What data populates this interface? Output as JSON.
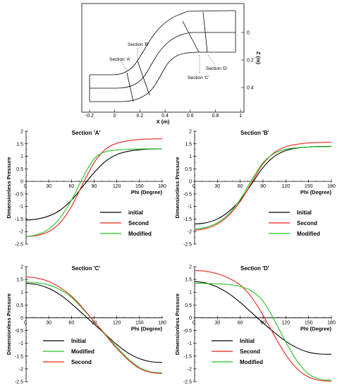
{
  "geometry": {
    "xlabel": "X (m)",
    "ylabel": "Z (m)",
    "x_ticks": [
      "-0.2",
      "0",
      "0.2",
      "0.4",
      "0.6",
      "0.8",
      "1"
    ],
    "y_ticks": [
      "0",
      "0.2",
      "0.4"
    ],
    "section_labels": [
      "Section 'A'",
      "Section 'B'",
      "Section 'C'",
      "Section 'D'"
    ]
  },
  "chart_data": [
    {
      "type": "line",
      "title": "Section 'A'",
      "xlabel": "Phi (Degree)",
      "ylabel": "Dimensionless Pressure",
      "xlim": [
        0,
        180
      ],
      "ylim": [
        -2.5,
        2
      ],
      "x_ticks": [
        "30",
        "60",
        "90",
        "120",
        "150",
        "180"
      ],
      "y_ticks": [
        "2",
        "1.5",
        "1",
        "0.5",
        "0",
        "-0.5",
        "-1",
        "-1.5",
        "-2",
        "-2.5"
      ],
      "legend_position": "lower-right",
      "series": [
        {
          "name": "initial",
          "color": "#000000",
          "x": [
            0,
            15,
            30,
            45,
            60,
            75,
            90,
            105,
            120,
            135,
            150,
            165,
            180
          ],
          "y": [
            -1.55,
            -1.5,
            -1.38,
            -1.15,
            -0.75,
            -0.2,
            0.35,
            0.8,
            1.07,
            1.2,
            1.26,
            1.29,
            1.3
          ]
        },
        {
          "name": "Second",
          "color": "#e8231a",
          "x": [
            0,
            15,
            30,
            45,
            60,
            75,
            90,
            105,
            120,
            135,
            150,
            165,
            180
          ],
          "y": [
            -2.2,
            -2.15,
            -2.0,
            -1.65,
            -1.0,
            -0.1,
            0.75,
            1.28,
            1.52,
            1.62,
            1.67,
            1.69,
            1.7
          ]
        },
        {
          "name": "Modified",
          "color": "#22c422",
          "x": [
            0,
            15,
            30,
            45,
            60,
            75,
            90,
            105,
            120,
            135,
            150,
            165,
            180
          ],
          "y": [
            -2.2,
            -2.12,
            -1.9,
            -1.45,
            -0.75,
            0.15,
            0.9,
            1.18,
            1.25,
            1.28,
            1.29,
            1.3,
            1.3
          ]
        }
      ]
    },
    {
      "type": "line",
      "title": "Section 'B'",
      "xlabel": "Phi (Degree)",
      "ylabel": "Dimensionless Pressure",
      "xlim": [
        0,
        180
      ],
      "ylim": [
        -2.5,
        2
      ],
      "x_ticks": [
        "30",
        "60",
        "90",
        "120",
        "150",
        "180"
      ],
      "y_ticks": [
        "2",
        "1.5",
        "1",
        "0.5",
        "0",
        "-0.5",
        "-1",
        "-1.5",
        "-2",
        "-2.5"
      ],
      "legend_position": "lower-right",
      "series": [
        {
          "name": "Initial",
          "color": "#000000",
          "x": [
            0,
            15,
            30,
            45,
            60,
            75,
            90,
            105,
            120,
            135,
            150,
            165,
            180
          ],
          "y": [
            -1.7,
            -1.65,
            -1.5,
            -1.2,
            -0.75,
            -0.1,
            0.55,
            1.0,
            1.23,
            1.33,
            1.37,
            1.39,
            1.4
          ]
        },
        {
          "name": "Second",
          "color": "#e8231a",
          "x": [
            0,
            15,
            30,
            45,
            60,
            75,
            90,
            105,
            120,
            135,
            150,
            165,
            180
          ],
          "y": [
            -1.95,
            -1.88,
            -1.7,
            -1.35,
            -0.8,
            -0.05,
            0.7,
            1.15,
            1.38,
            1.48,
            1.53,
            1.55,
            1.56
          ]
        },
        {
          "name": "Modified",
          "color": "#22c422",
          "x": [
            0,
            15,
            30,
            45,
            60,
            75,
            90,
            105,
            120,
            135,
            150,
            165,
            180
          ],
          "y": [
            -1.9,
            -1.83,
            -1.65,
            -1.3,
            -0.72,
            0.05,
            0.75,
            1.12,
            1.28,
            1.34,
            1.37,
            1.38,
            1.39
          ]
        }
      ]
    },
    {
      "type": "line",
      "title": "Section 'C'",
      "xlabel": "Phi (Degree)",
      "ylabel": "Dimensionless Pressure",
      "xlim": [
        0,
        180
      ],
      "ylim": [
        -2.5,
        2
      ],
      "x_ticks": [
        "30",
        "60",
        "90",
        "120",
        "150",
        "180"
      ],
      "y_ticks": [
        "2",
        "1.5",
        "1",
        "0.5",
        "0",
        "-0.5",
        "-1",
        "-1.5",
        "-2",
        "-2.5"
      ],
      "legend_position": "lower-left",
      "series": [
        {
          "name": "Initial",
          "color": "#000000",
          "x": [
            0,
            15,
            30,
            45,
            60,
            75,
            90,
            105,
            120,
            135,
            150,
            165,
            180
          ],
          "y": [
            1.35,
            1.3,
            1.15,
            0.9,
            0.55,
            0.15,
            -0.25,
            -0.65,
            -1.05,
            -1.38,
            -1.6,
            -1.72,
            -1.75
          ]
        },
        {
          "name": "Modified",
          "color": "#22c422",
          "x": [
            0,
            15,
            30,
            45,
            60,
            75,
            90,
            105,
            120,
            135,
            150,
            165,
            180
          ],
          "y": [
            1.4,
            1.37,
            1.28,
            1.1,
            0.8,
            0.35,
            -0.15,
            -0.65,
            -1.15,
            -1.6,
            -1.95,
            -2.12,
            -2.16
          ]
        },
        {
          "name": "Second",
          "color": "#e8231a",
          "x": [
            0,
            15,
            30,
            45,
            60,
            75,
            90,
            105,
            120,
            135,
            150,
            165,
            180
          ],
          "y": [
            1.6,
            1.55,
            1.42,
            1.18,
            0.85,
            0.38,
            -0.15,
            -0.68,
            -1.2,
            -1.65,
            -1.98,
            -2.14,
            -2.18
          ]
        }
      ]
    },
    {
      "type": "line",
      "title": "Section 'D'",
      "xlabel": "Phi (Degree)",
      "ylabel": "Dimensionless Pressure",
      "xlim": [
        0,
        180
      ],
      "ylim": [
        -2.5,
        2
      ],
      "x_ticks": [
        "30",
        "60",
        "90",
        "120",
        "150",
        "180"
      ],
      "y_ticks": [
        "2",
        "1.5",
        "1",
        "0.5",
        "0",
        "-0.5",
        "-1",
        "-1.5",
        "-2",
        "-2.5"
      ],
      "legend_position": "lower-left",
      "series": [
        {
          "name": "Initial",
          "color": "#000000",
          "x": [
            0,
            15,
            30,
            45,
            60,
            75,
            90,
            105,
            120,
            135,
            150,
            165,
            180
          ],
          "y": [
            1.42,
            1.36,
            1.2,
            0.95,
            0.6,
            0.2,
            -0.2,
            -0.58,
            -0.92,
            -1.18,
            -1.35,
            -1.42,
            -1.43
          ]
        },
        {
          "name": "Second",
          "color": "#e8231a",
          "x": [
            0,
            15,
            30,
            45,
            60,
            75,
            90,
            105,
            120,
            135,
            150,
            165,
            180
          ],
          "y": [
            1.85,
            1.82,
            1.72,
            1.55,
            1.28,
            0.8,
            0.1,
            -0.7,
            -1.45,
            -2.0,
            -2.32,
            -2.45,
            -2.48
          ]
        },
        {
          "name": "Modified",
          "color": "#22c422",
          "x": [
            0,
            15,
            30,
            45,
            60,
            75,
            90,
            105,
            120,
            135,
            150,
            165,
            180
          ],
          "y": [
            1.35,
            1.34,
            1.33,
            1.3,
            1.22,
            1.05,
            0.65,
            -0.1,
            -0.95,
            -1.7,
            -2.2,
            -2.4,
            -2.45
          ]
        }
      ]
    }
  ]
}
